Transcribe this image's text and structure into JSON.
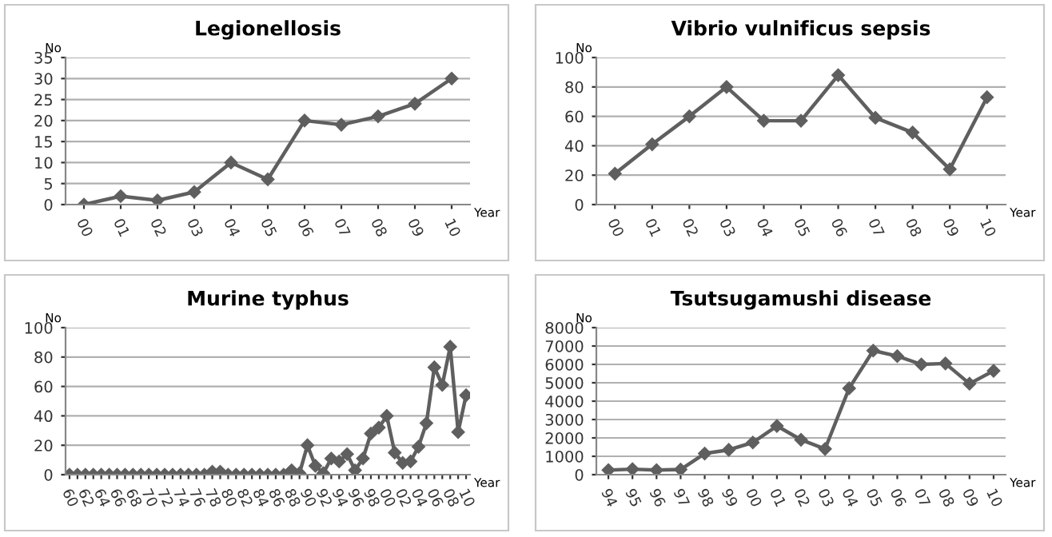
{
  "chart_data": [
    {
      "type": "line",
      "title": "Legionellosis",
      "ylabel": "No",
      "xlabel": "Year",
      "categories": [
        "00",
        "01",
        "02",
        "03",
        "04",
        "05",
        "06",
        "07",
        "08",
        "09",
        "10"
      ],
      "series": [
        {
          "color": "#5f5f5f",
          "values": [
            0,
            2,
            1,
            3,
            10,
            6,
            20,
            19,
            21,
            24,
            30
          ]
        }
      ],
      "ylim": [
        0,
        35
      ],
      "yticks": [
        0,
        5,
        10,
        15,
        20,
        25,
        30,
        35
      ],
      "grid": "y",
      "marker": "diamond",
      "line_style": "solid"
    },
    {
      "type": "line",
      "title": "Vibrio vulnificus sepsis",
      "ylabel": "No",
      "xlabel": "Year",
      "categories": [
        "00",
        "01",
        "02",
        "03",
        "04",
        "05",
        "06",
        "07",
        "08",
        "09",
        "10"
      ],
      "series": [
        {
          "color": "#5f5f5f",
          "values": [
            21,
            41,
            60,
            80,
            57,
            57,
            88,
            59,
            49,
            24,
            73
          ]
        }
      ],
      "ylim": [
        0,
        100
      ],
      "yticks": [
        0,
        20,
        40,
        60,
        80,
        100
      ],
      "grid": "y",
      "marker": "diamond",
      "line_style": "solid"
    },
    {
      "type": "line",
      "title": "Murine typhus",
      "ylabel": "No",
      "xlabel": "Year",
      "categories": [
        "60",
        null,
        "62",
        null,
        "64",
        null,
        "66",
        null,
        "68",
        null,
        "70",
        null,
        "72",
        null,
        "74",
        null,
        "76",
        null,
        "78",
        null,
        "80",
        null,
        "82",
        null,
        "84",
        null,
        "86",
        null,
        "88",
        null,
        "90",
        null,
        "92",
        null,
        "94",
        null,
        "96",
        null,
        "98",
        null,
        "00",
        null,
        "02",
        null,
        "04",
        null,
        "06",
        null,
        "08",
        null,
        "10"
      ],
      "series": [
        {
          "color": "#5f5f5f",
          "values": [
            0,
            0,
            0,
            0,
            0,
            0,
            0,
            0,
            0,
            0,
            0,
            0,
            0,
            0,
            0,
            0,
            0,
            0,
            2,
            2,
            0,
            0,
            0,
            0,
            0,
            0,
            0,
            0,
            3,
            1,
            20,
            6,
            1,
            11,
            9,
            14,
            3,
            11,
            28,
            32,
            40,
            15,
            8,
            9,
            19,
            35,
            73,
            61,
            87,
            29,
            54
          ]
        }
      ],
      "ylim": [
        0,
        100
      ],
      "yticks": [
        0,
        20,
        40,
        60,
        80,
        100
      ],
      "grid": "y",
      "marker": "diamond",
      "line_style": "solid"
    },
    {
      "type": "line",
      "title": "Tsutsugamushi disease",
      "ylabel": "No",
      "xlabel": "Year",
      "categories": [
        "94",
        "95",
        "96",
        "97",
        "98",
        "99",
        "00",
        "01",
        "02",
        "03",
        "04",
        "05",
        "06",
        "07",
        "08",
        "09",
        "10"
      ],
      "series": [
        {
          "color": "#5f5f5f",
          "values": [
            250,
            300,
            250,
            280,
            1150,
            1350,
            1750,
            2650,
            1900,
            1400,
            4700,
            6750,
            6450,
            6000,
            6050,
            4950,
            5650
          ]
        }
      ],
      "ylim": [
        0,
        8000
      ],
      "yticks": [
        0,
        1000,
        2000,
        3000,
        4000,
        5000,
        6000,
        7000,
        8000
      ],
      "grid": "y",
      "marker": "diamond",
      "line_style": "solid"
    }
  ]
}
